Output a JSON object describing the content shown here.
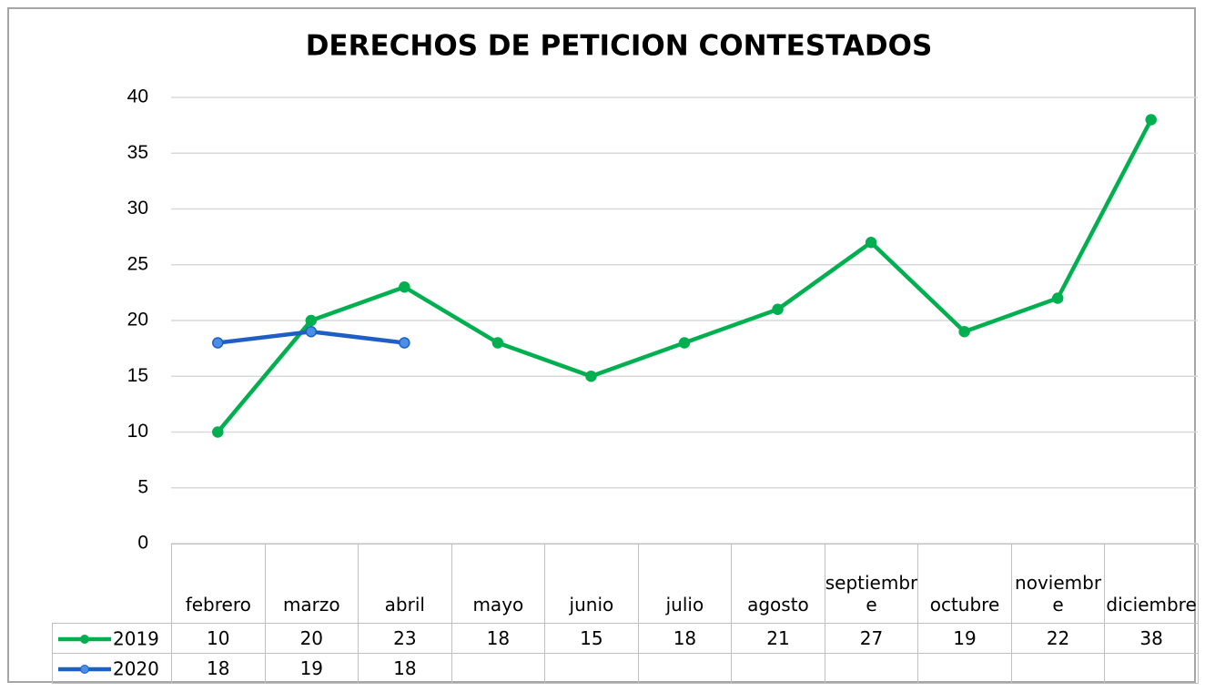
{
  "chart_data": {
    "type": "line",
    "title": "DERECHOS DE PETICION CONTESTADOS",
    "categories": [
      "febrero",
      "marzo",
      "abril",
      "mayo",
      "junio",
      "julio",
      "agosto",
      "septiembre",
      "octubre",
      "noviembre",
      "diciembre"
    ],
    "series": [
      {
        "name": "2019",
        "color": "#00b050",
        "values": [
          10,
          20,
          23,
          18,
          15,
          18,
          21,
          27,
          19,
          22,
          38
        ]
      },
      {
        "name": "2020",
        "color": "#1f5fc4",
        "values": [
          18,
          19,
          18,
          null,
          null,
          null,
          null,
          null,
          null,
          null,
          null
        ]
      }
    ],
    "ylim": [
      0,
      40
    ],
    "yticks": [
      0,
      5,
      10,
      15,
      20,
      25,
      30,
      35,
      40
    ],
    "grid": true
  }
}
